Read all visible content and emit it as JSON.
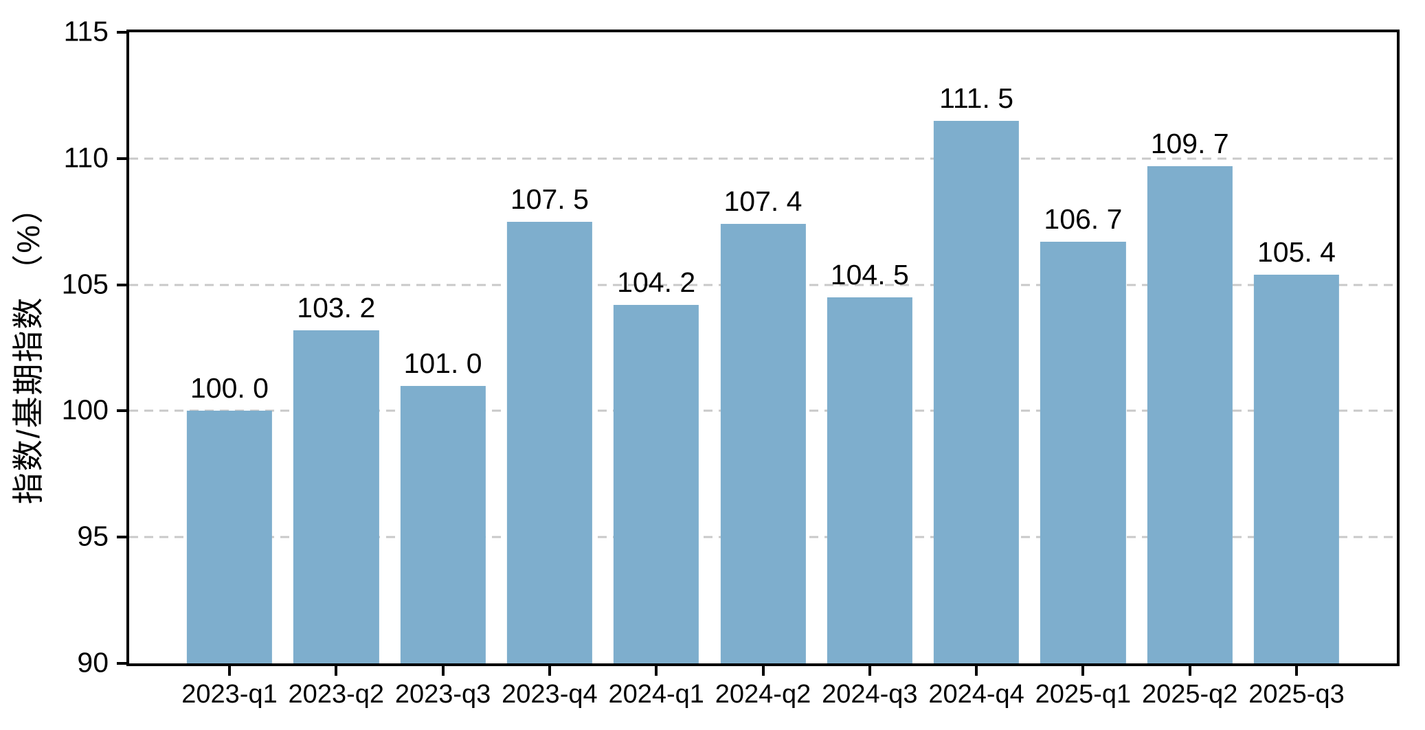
{
  "chart_data": {
    "type": "bar",
    "title": "",
    "categories": [
      "2023-q1",
      "2023-q2",
      "2023-q3",
      "2023-q4",
      "2024-q1",
      "2024-q2",
      "2024-q3",
      "2024-q4",
      "2025-q1",
      "2025-q2",
      "2025-q3"
    ],
    "values": [
      100.0,
      103.2,
      101.0,
      107.5,
      104.2,
      107.4,
      104.5,
      111.5,
      106.7,
      109.7,
      105.4
    ],
    "value_labels": [
      "100. 0",
      "103. 2",
      "101. 0",
      "107. 5",
      "104. 2",
      "107. 4",
      "104. 5",
      "111. 5",
      "106. 7",
      "109. 7",
      "105. 4"
    ],
    "xlabel": "",
    "ylabel": "指数/基期指数 （%）",
    "ylim": [
      90,
      115
    ],
    "yticks": [
      90,
      95,
      100,
      105,
      110,
      115
    ],
    "grid_ticks": [
      95,
      100,
      105,
      110
    ],
    "grid": "horizontal-dashed",
    "legend": "none",
    "colors": {
      "bar": "#7EAECD",
      "grid": "#C9C9C9",
      "axis": "#000000",
      "text": "#000000",
      "background": "#FFFFFF"
    }
  }
}
